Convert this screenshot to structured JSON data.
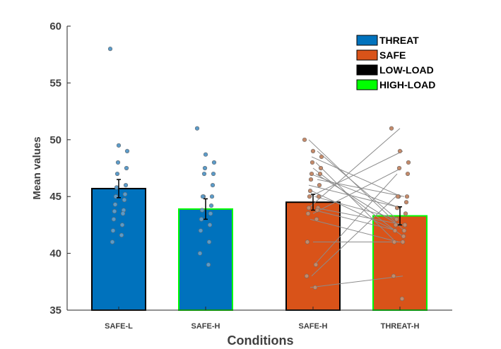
{
  "chart_data": {
    "type": "bar",
    "title": "",
    "xlabel": "Conditions",
    "ylabel": "Mean values",
    "ylim": [
      35,
      60
    ],
    "yticks": [
      35,
      40,
      45,
      50,
      55,
      60
    ],
    "grid": false,
    "legend_position": "top-right",
    "categories": [
      "SAFE-L",
      "SAFE-H",
      "SAFE-H",
      "THREAT-H"
    ],
    "values": [
      45.7,
      43.9,
      44.5,
      43.3
    ],
    "errors": [
      0.8,
      0.9,
      0.7,
      0.8
    ],
    "fill_colors": [
      "#0072BD",
      "#0072BD",
      "#D95319",
      "#D95319"
    ],
    "edge_colors": [
      "#000000",
      "#00FF00",
      "#000000",
      "#00FF00"
    ],
    "legend": [
      {
        "label": "THREAT",
        "color": "#0072BD"
      },
      {
        "label": "SAFE",
        "color": "#D95319"
      },
      {
        "label": "LOW-LOAD",
        "color": "#000000"
      },
      {
        "label": "HIGH-LOAD",
        "color": "#00FF00"
      }
    ],
    "individual_points": [
      [
        58,
        49.5,
        49,
        48,
        47.5,
        47,
        46,
        45.8,
        45.2,
        45,
        44.7,
        44.3,
        43.8,
        43.7,
        43.5,
        43,
        42.5,
        42,
        41.6,
        41
      ],
      [
        51,
        48.7,
        48,
        47.5,
        47,
        47,
        46,
        45,
        45,
        45,
        44.2,
        43.8,
        43.5,
        43,
        42.5,
        42,
        41,
        40,
        39
      ],
      [
        50,
        49,
        48.5,
        48,
        47.5,
        47,
        47,
        46.5,
        46,
        45.5,
        45,
        45,
        44,
        44,
        43.8,
        43.5,
        43,
        41,
        39,
        38,
        37
      ],
      [
        51,
        49,
        48,
        47.5,
        47,
        45,
        45,
        45,
        44.5,
        44,
        43.5,
        43,
        42.5,
        42.5,
        42,
        42,
        41.5,
        41,
        41,
        38,
        36
      ]
    ],
    "paired_lines": [
      [
        50,
        42
      ],
      [
        49,
        43
      ],
      [
        48.5,
        45
      ],
      [
        48,
        41
      ],
      [
        47.5,
        41.5
      ],
      [
        47,
        44
      ],
      [
        47,
        42.5
      ],
      [
        46.5,
        45
      ],
      [
        46,
        44
      ],
      [
        45.5,
        42
      ],
      [
        45,
        43
      ],
      [
        45,
        49
      ],
      [
        44,
        42.5
      ],
      [
        44,
        51
      ],
      [
        43.8,
        42
      ],
      [
        43.5,
        47.5
      ],
      [
        43,
        41
      ],
      [
        41,
        41
      ],
      [
        39,
        47
      ],
      [
        38,
        45
      ],
      [
        37,
        38
      ]
    ]
  }
}
